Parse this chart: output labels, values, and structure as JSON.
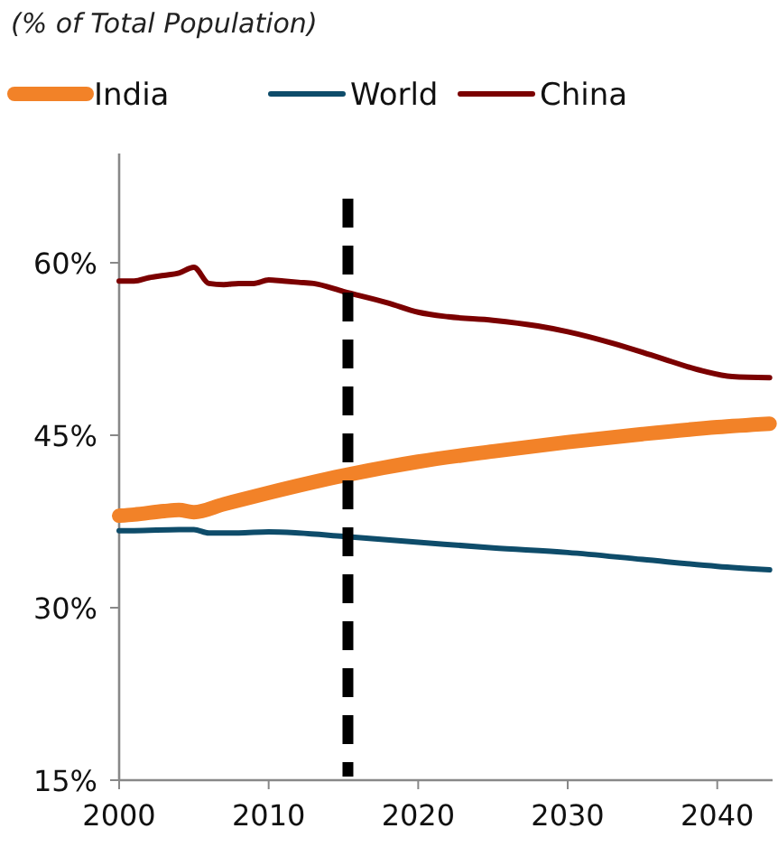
{
  "chart_data": {
    "type": "line",
    "title": "(% of Total Population)",
    "xlim": [
      2000,
      2043.7
    ],
    "xticks": [
      2000,
      2010,
      2020,
      2030,
      2040
    ],
    "ylim": [
      15,
      69.5
    ],
    "yticks": [
      {
        "value": 15,
        "label": "15%"
      },
      {
        "value": 30,
        "label": "30%"
      },
      {
        "value": 45,
        "label": "45%"
      },
      {
        "value": 60,
        "label": "60%"
      }
    ],
    "grid": false,
    "legend": "top",
    "line_style": "solid",
    "marker": "none",
    "ref_lines": [
      {
        "axis": "x",
        "value": 2015.3,
        "color": "#000000",
        "line_style": "dashed"
      }
    ],
    "series": [
      {
        "name": "India",
        "color": "#f28228",
        "x": [
          2000,
          2001,
          2003,
          2004,
          2005,
          2007,
          2010,
          2015,
          2020,
          2025,
          2030,
          2035,
          2040,
          2043.5
        ],
        "values": [
          38.0,
          38.1,
          38.4,
          38.5,
          38.3,
          39.0,
          40.0,
          41.5,
          42.7,
          43.6,
          44.4,
          45.1,
          45.7,
          46.0
        ]
      },
      {
        "name": "World",
        "color": "#0e4c6a",
        "x": [
          2000,
          2001,
          2004,
          2005,
          2006,
          2008,
          2010,
          2012,
          2015,
          2020,
          2025,
          2030,
          2035,
          2040,
          2043.5
        ],
        "values": [
          36.7,
          36.7,
          36.8,
          36.8,
          36.5,
          36.5,
          36.6,
          36.5,
          36.2,
          35.7,
          35.2,
          34.8,
          34.2,
          33.6,
          33.3
        ]
      },
      {
        "name": "China",
        "color": "#7b0000",
        "x": [
          2000,
          2001,
          2002,
          2003,
          2004,
          2005,
          2006,
          2007,
          2008,
          2009,
          2010,
          2011,
          2012,
          2013,
          2015,
          2018,
          2020,
          2022,
          2025,
          2028,
          2030,
          2033,
          2036,
          2039,
          2041,
          2043.5
        ],
        "values": [
          58.4,
          58.4,
          58.7,
          58.9,
          59.1,
          59.6,
          58.2,
          58.1,
          58.2,
          58.2,
          58.5,
          58.4,
          58.3,
          58.2,
          57.5,
          56.5,
          55.7,
          55.3,
          55.0,
          54.5,
          54.0,
          53.0,
          51.8,
          50.6,
          50.1,
          50.0
        ]
      }
    ]
  }
}
